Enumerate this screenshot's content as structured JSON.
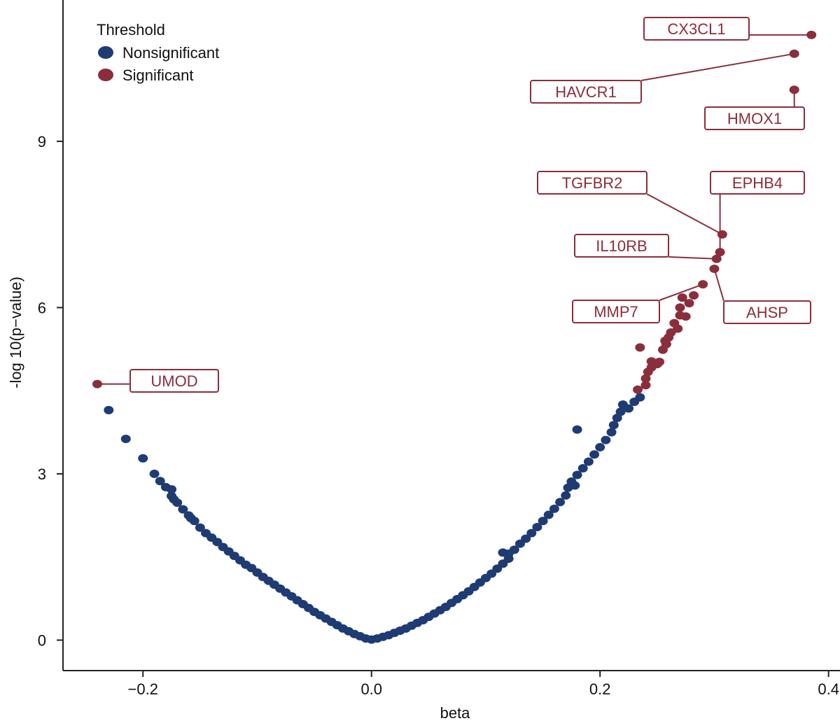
{
  "chart_data": {
    "type": "scatter",
    "title": "",
    "xlabel": "beta",
    "ylabel": "-log 10(p−value)",
    "xlim": [
      -0.27,
      0.41
    ],
    "ylim": [
      -0.55,
      11.55
    ],
    "xticks": [
      {
        "value": -0.2,
        "label": "−0.2"
      },
      {
        "value": 0.0,
        "label": "0.0"
      },
      {
        "value": 0.2,
        "label": "0.2"
      },
      {
        "value": 0.4,
        "label": "0.4"
      }
    ],
    "yticks": [
      {
        "value": 0,
        "label": "0"
      },
      {
        "value": 3,
        "label": "3"
      },
      {
        "value": 6,
        "label": "6"
      },
      {
        "value": 9,
        "label": "9"
      }
    ],
    "grid": false,
    "legend": {
      "title": "Threshold",
      "placement": "top-left",
      "items": [
        {
          "label": "Nonsignificant",
          "color": "#1f3b73"
        },
        {
          "label": "Significant",
          "color": "#8b2e3c"
        }
      ]
    },
    "series": [
      {
        "name": "Nonsignificant",
        "color": "#1f3b73",
        "points": [
          [
            -0.23,
            4.15
          ],
          [
            -0.215,
            3.63
          ],
          [
            -0.2,
            3.28
          ],
          [
            -0.19,
            3.0
          ],
          [
            -0.185,
            2.87
          ],
          [
            -0.18,
            2.76
          ],
          [
            -0.175,
            2.72
          ],
          [
            -0.175,
            2.6
          ],
          [
            -0.173,
            2.54
          ],
          [
            -0.17,
            2.48
          ],
          [
            -0.165,
            2.36
          ],
          [
            -0.16,
            2.25
          ],
          [
            -0.158,
            2.2
          ],
          [
            -0.155,
            2.15
          ],
          [
            -0.15,
            2.03
          ],
          [
            -0.145,
            1.93
          ],
          [
            -0.14,
            1.85
          ],
          [
            -0.135,
            1.77
          ],
          [
            -0.13,
            1.68
          ],
          [
            -0.125,
            1.6
          ],
          [
            -0.12,
            1.52
          ],
          [
            -0.115,
            1.44
          ],
          [
            -0.11,
            1.36
          ],
          [
            -0.105,
            1.3
          ],
          [
            -0.1,
            1.22
          ],
          [
            -0.095,
            1.14
          ],
          [
            -0.09,
            1.07
          ],
          [
            -0.085,
            1.0
          ],
          [
            -0.08,
            0.93
          ],
          [
            -0.075,
            0.86
          ],
          [
            -0.07,
            0.79
          ],
          [
            -0.065,
            0.72
          ],
          [
            -0.06,
            0.65
          ],
          [
            -0.055,
            0.58
          ],
          [
            -0.05,
            0.51
          ],
          [
            -0.045,
            0.45
          ],
          [
            -0.04,
            0.39
          ],
          [
            -0.035,
            0.33
          ],
          [
            -0.03,
            0.27
          ],
          [
            -0.025,
            0.21
          ],
          [
            -0.02,
            0.16
          ],
          [
            -0.015,
            0.11
          ],
          [
            -0.01,
            0.07
          ],
          [
            -0.005,
            0.03
          ],
          [
            0.0,
            0.01
          ],
          [
            0.005,
            0.03
          ],
          [
            0.01,
            0.06
          ],
          [
            0.015,
            0.09
          ],
          [
            0.02,
            0.13
          ],
          [
            0.025,
            0.17
          ],
          [
            0.03,
            0.21
          ],
          [
            0.035,
            0.26
          ],
          [
            0.04,
            0.31
          ],
          [
            0.045,
            0.36
          ],
          [
            0.05,
            0.42
          ],
          [
            0.055,
            0.48
          ],
          [
            0.06,
            0.54
          ],
          [
            0.065,
            0.6
          ],
          [
            0.07,
            0.67
          ],
          [
            0.075,
            0.74
          ],
          [
            0.08,
            0.81
          ],
          [
            0.085,
            0.88
          ],
          [
            0.09,
            0.96
          ],
          [
            0.095,
            1.04
          ],
          [
            0.1,
            1.12
          ],
          [
            0.105,
            1.2
          ],
          [
            0.11,
            1.29
          ],
          [
            0.115,
            1.38
          ],
          [
            0.12,
            1.47
          ],
          [
            0.115,
            1.58
          ],
          [
            0.12,
            1.56
          ],
          [
            0.125,
            1.63
          ],
          [
            0.13,
            1.74
          ],
          [
            0.135,
            1.83
          ],
          [
            0.14,
            1.93
          ],
          [
            0.145,
            2.04
          ],
          [
            0.15,
            2.15
          ],
          [
            0.155,
            2.26
          ],
          [
            0.16,
            2.37
          ],
          [
            0.165,
            2.49
          ],
          [
            0.17,
            2.61
          ],
          [
            0.172,
            2.75
          ],
          [
            0.175,
            2.86
          ],
          [
            0.178,
            2.79
          ],
          [
            0.18,
            2.98
          ],
          [
            0.18,
            3.8
          ],
          [
            0.185,
            3.1
          ],
          [
            0.19,
            3.22
          ],
          [
            0.195,
            3.35
          ],
          [
            0.2,
            3.48
          ],
          [
            0.205,
            3.61
          ],
          [
            0.21,
            3.75
          ],
          [
            0.212,
            3.88
          ],
          [
            0.215,
            4.01
          ],
          [
            0.218,
            4.12
          ],
          [
            0.22,
            4.25
          ],
          [
            0.225,
            4.18
          ],
          [
            0.23,
            4.3
          ],
          [
            0.235,
            4.38
          ]
        ]
      },
      {
        "name": "Significant",
        "color": "#8b2e3c",
        "points": [
          [
            -0.24,
            4.62
          ],
          [
            0.233,
            4.52
          ],
          [
            0.235,
            5.28
          ],
          [
            0.24,
            4.6
          ],
          [
            0.24,
            4.72
          ],
          [
            0.242,
            4.84
          ],
          [
            0.245,
            4.92
          ],
          [
            0.245,
            5.03
          ],
          [
            0.248,
            5.0
          ],
          [
            0.25,
            4.98
          ],
          [
            0.252,
            5.02
          ],
          [
            0.255,
            5.24
          ],
          [
            0.257,
            5.4
          ],
          [
            0.258,
            5.34
          ],
          [
            0.26,
            5.46
          ],
          [
            0.262,
            5.55
          ],
          [
            0.265,
            5.72
          ],
          [
            0.268,
            5.62
          ],
          [
            0.27,
            5.86
          ],
          [
            0.27,
            6.0
          ],
          [
            0.272,
            6.18
          ],
          [
            0.275,
            5.84
          ],
          [
            0.278,
            6.08
          ],
          [
            0.282,
            6.22
          ],
          [
            0.29,
            6.42
          ],
          [
            0.3,
            6.7
          ],
          [
            0.302,
            6.88
          ],
          [
            0.305,
            7.0
          ],
          [
            0.307,
            7.32
          ],
          [
            0.37,
            9.93
          ],
          [
            0.37,
            10.58
          ],
          [
            0.385,
            10.92
          ]
        ]
      }
    ],
    "annotations": [
      {
        "label": "UMOD",
        "x": -0.24,
        "y": 4.62
      },
      {
        "label": "CX3CL1",
        "x": 0.385,
        "y": 10.92
      },
      {
        "label": "HAVCR1",
        "x": 0.37,
        "y": 10.58
      },
      {
        "label": "HMOX1",
        "x": 0.37,
        "y": 9.93
      },
      {
        "label": "TGFBR2",
        "x": 0.307,
        "y": 7.32
      },
      {
        "label": "EPHB4",
        "x": 0.305,
        "y": 7.0
      },
      {
        "label": "IL10RB",
        "x": 0.302,
        "y": 6.88
      },
      {
        "label": "AHSP",
        "x": 0.3,
        "y": 6.7
      },
      {
        "label": "MMP7",
        "x": 0.29,
        "y": 6.42
      }
    ]
  }
}
